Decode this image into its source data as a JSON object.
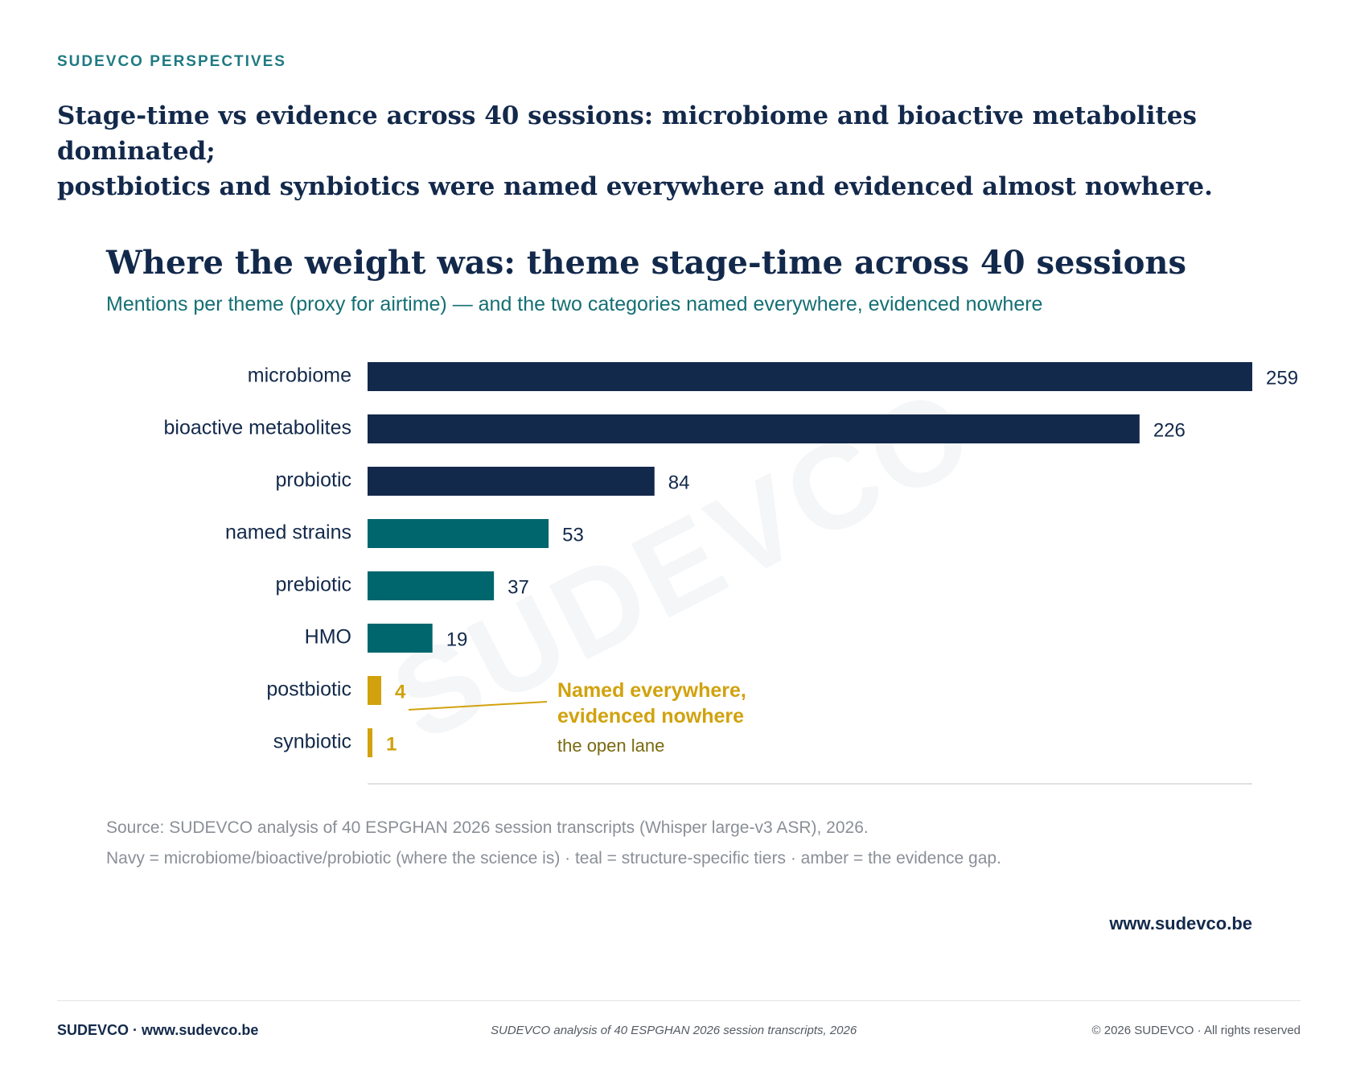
{
  "header": {
    "kicker": "SUDEVCO PERSPECTIVES",
    "headline_line1": "Stage-time vs evidence across 40 sessions: microbiome and bioactive metabolites dominated;",
    "headline_line2": "postbiotics and synbiotics were named everywhere and evidenced almost nowhere."
  },
  "chart_data": {
    "type": "bar",
    "orientation": "horizontal",
    "title": "Where the weight was: theme stage-time across 40 sessions",
    "subtitle": "Mentions per theme (proxy for airtime) — and the two categories named everywhere, evidenced nowhere",
    "categories": [
      "microbiome",
      "bioactive metabolites",
      "probiotic",
      "named strains",
      "prebiotic",
      "HMO",
      "postbiotic",
      "synbiotic"
    ],
    "values": [
      259,
      226,
      84,
      53,
      37,
      19,
      4,
      1
    ],
    "bar_colors": [
      "#13294b",
      "#13294b",
      "#13294b",
      "#00666e",
      "#00666e",
      "#00666e",
      "#d1a20d",
      "#d1a20d"
    ],
    "label_colors": [
      "#13294b",
      "#13294b",
      "#13294b",
      "#13294b",
      "#13294b",
      "#13294b",
      "#d1a20d",
      "#d1a20d"
    ],
    "xlim": [
      0,
      259
    ],
    "grid": false,
    "annotation": {
      "line1": "Named everywhere,",
      "line2": "evidenced nowhere",
      "sub": "the open lane",
      "color": "#d1a20d",
      "sub_color": "#7a6a10"
    }
  },
  "source": {
    "line1": "Source: SUDEVCO analysis of 40 ESPGHAN 2026 session transcripts (Whisper large-v3 ASR), 2026.",
    "line2": "Navy = microbiome/bioactive/probiotic (where the science is) · teal = structure-specific tiers · amber = the evidence gap."
  },
  "site": "www.sudevco.be",
  "watermark": "SUDEVCO",
  "footer": {
    "left": "SUDEVCO · www.sudevco.be",
    "middle": "SUDEVCO analysis of 40 ESPGHAN 2026 session transcripts, 2026",
    "right": "© 2026 SUDEVCO · All rights reserved"
  }
}
